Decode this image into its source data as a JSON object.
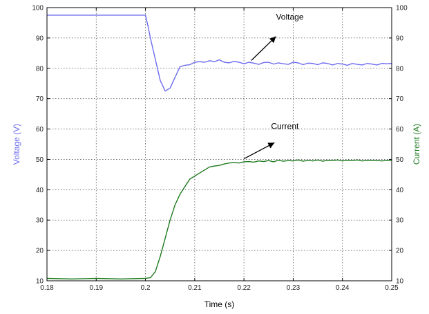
{
  "chart_data": {
    "type": "line",
    "xlabel": "Time (s)",
    "ylabel_left": "Voltage (V)",
    "ylabel_right": "Current (A)",
    "xlim": [
      0.18,
      0.25
    ],
    "ylim_left": [
      10,
      100
    ],
    "ylim_right": [
      10,
      100
    ],
    "grid": true,
    "x_ticks": [
      "0.18",
      "0.19",
      "0.2",
      "0.21",
      "0.22",
      "0.23",
      "0.24",
      "0.25"
    ],
    "y_ticks_left": [
      "10",
      "20",
      "30",
      "40",
      "50",
      "60",
      "70",
      "80",
      "90",
      "100"
    ],
    "y_ticks_right": [
      "10",
      "20",
      "30",
      "40",
      "50",
      "60",
      "70",
      "80",
      "90",
      "100"
    ],
    "colors": {
      "voltage": "#6b6bef",
      "current": "#1f7a1f",
      "voltage_label": "#6b6bef",
      "current_label": "#1f7a1f"
    },
    "series": [
      {
        "name": "Voltage",
        "axis": "left",
        "x": [
          0.18,
          0.19,
          0.2,
          0.2005,
          0.201,
          0.202,
          0.203,
          0.204,
          0.205,
          0.206,
          0.207,
          0.208,
          0.209,
          0.21,
          0.211,
          0.212,
          0.213,
          0.214,
          0.215,
          0.216,
          0.217,
          0.218,
          0.219,
          0.22,
          0.221,
          0.222,
          0.223,
          0.224,
          0.225,
          0.226,
          0.227,
          0.228,
          0.229,
          0.23,
          0.231,
          0.232,
          0.233,
          0.234,
          0.235,
          0.236,
          0.237,
          0.238,
          0.239,
          0.24,
          0.241,
          0.242,
          0.243,
          0.244,
          0.245,
          0.246,
          0.247,
          0.248,
          0.249,
          0.25
        ],
        "y": [
          97.5,
          97.5,
          97.5,
          94,
          90,
          83,
          76,
          72.5,
          73.5,
          77,
          80.5,
          81,
          81.2,
          82,
          82.2,
          82,
          82.5,
          82.2,
          82.8,
          82,
          81.8,
          82.3,
          82,
          81.5,
          82,
          81.7,
          81.3,
          81.9,
          82,
          81.4,
          81.8,
          81.5,
          81.3,
          82,
          81.8,
          81.2,
          81.7,
          81.6,
          81.2,
          81.8,
          81.6,
          81.1,
          81.6,
          81.4,
          81,
          81.6,
          81.3,
          81.1,
          81.6,
          81.4,
          81.1,
          81.6,
          81.5,
          81.6
        ]
      },
      {
        "name": "Current",
        "axis": "right",
        "x": [
          0.18,
          0.185,
          0.19,
          0.195,
          0.2,
          0.201,
          0.202,
          0.203,
          0.204,
          0.205,
          0.206,
          0.207,
          0.208,
          0.209,
          0.21,
          0.211,
          0.212,
          0.213,
          0.214,
          0.215,
          0.216,
          0.217,
          0.218,
          0.219,
          0.22,
          0.221,
          0.222,
          0.223,
          0.224,
          0.225,
          0.226,
          0.227,
          0.228,
          0.229,
          0.23,
          0.231,
          0.232,
          0.233,
          0.234,
          0.235,
          0.236,
          0.237,
          0.238,
          0.239,
          0.24,
          0.241,
          0.242,
          0.243,
          0.244,
          0.245,
          0.246,
          0.247,
          0.248,
          0.249,
          0.25
        ],
        "y": [
          10.8,
          10.6,
          10.8,
          10.6,
          10.8,
          11,
          13,
          18,
          24,
          30,
          35,
          38.5,
          41,
          43.5,
          44.5,
          45.5,
          46.5,
          47.5,
          47.8,
          48,
          48.5,
          48.8,
          49,
          48.8,
          49.2,
          49.3,
          49.1,
          49.5,
          49.3,
          49.6,
          49.2,
          49.7,
          49.4,
          49.6,
          49.5,
          49.8,
          49.4,
          49.7,
          49.5,
          49.8,
          49.4,
          49.7,
          49.6,
          49.8,
          49.5,
          49.7,
          49.6,
          49.8,
          49.5,
          49.7,
          49.6,
          49.7,
          49.5,
          49.7,
          49.6
        ]
      }
    ],
    "annotations": [
      {
        "text": "Voltage",
        "x": 0.2265,
        "y": 96
      },
      {
        "text": "Current",
        "x": 0.2255,
        "y": 60
      }
    ]
  }
}
